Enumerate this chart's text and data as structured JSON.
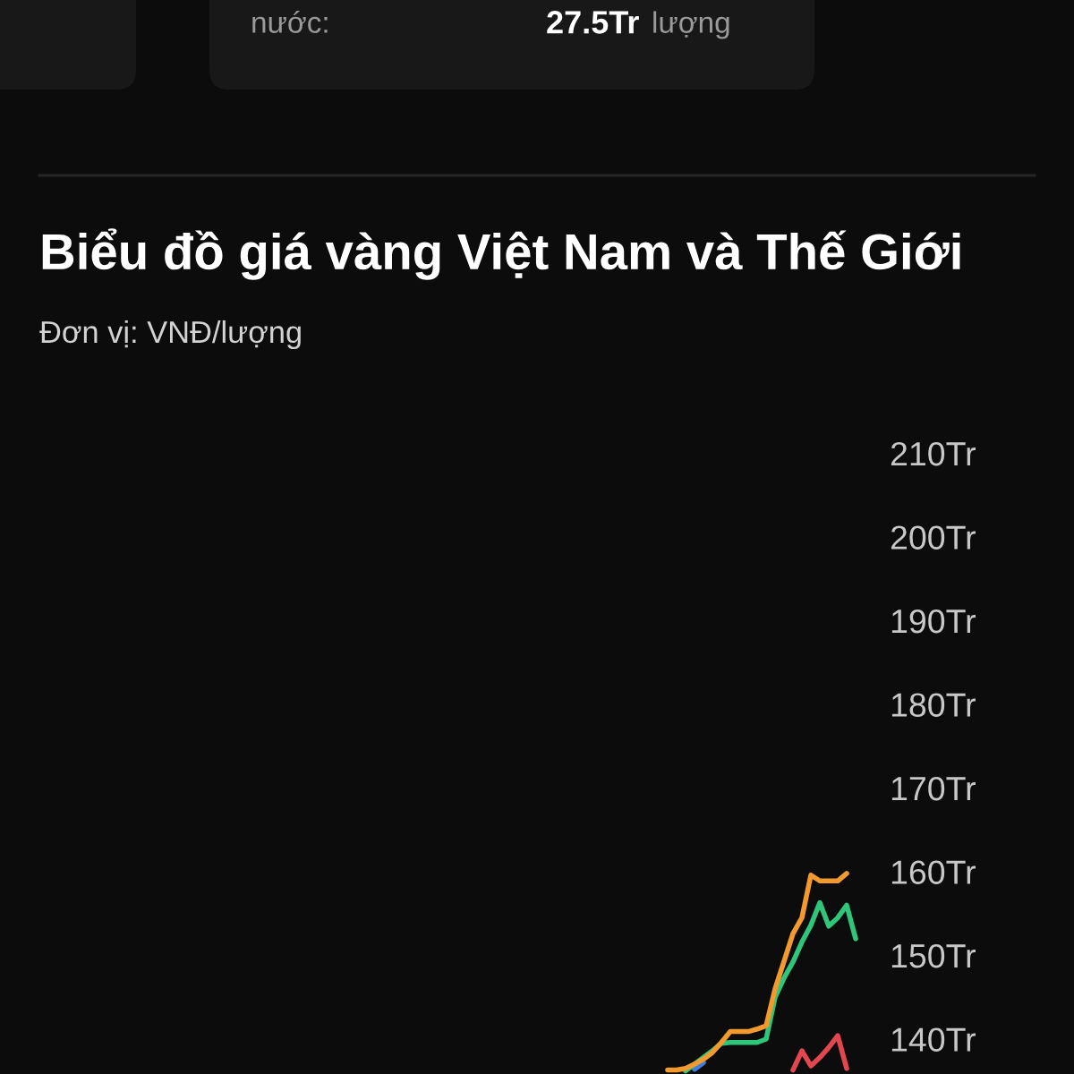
{
  "chart_data": {
    "type": "line",
    "title": "Biểu đồ giá vàng Việt Nam và Thế Giới",
    "subtitle": "Đơn vị: VNĐ/lượng",
    "annotations": [
      "nước:",
      "27.5Tr",
      "lượng"
    ],
    "categories": [
      null,
      null,
      null,
      null,
      null,
      null,
      null,
      null,
      null,
      null,
      null,
      null,
      null,
      null,
      null,
      null,
      null,
      null,
      null,
      null,
      null,
      null
    ],
    "series": [
      {
        "color": "#3d7fe0",
        "values": [
          null,
          null,
          null,
          136.4,
          137.2,
          null,
          null,
          null,
          null,
          null,
          null,
          null,
          null,
          null,
          null,
          null,
          null,
          null,
          null,
          null,
          null,
          null
        ]
      },
      {
        "color": "#e2474f",
        "values": [
          null,
          null,
          null,
          null,
          null,
          null,
          null,
          null,
          null,
          null,
          null,
          null,
          null,
          null,
          136.3,
          138.6,
          136.8,
          137.8,
          139.0,
          140.4,
          136.5,
          null
        ]
      },
      {
        "color": "#2fc57a",
        "values": [
          null,
          null,
          136.2,
          137.0,
          137.8,
          138.6,
          139.5,
          139.6,
          139.6,
          139.6,
          139.6,
          140.0,
          145.0,
          147.3,
          149.2,
          151.6,
          153.6,
          156.3,
          153.5,
          154.5,
          156.0,
          152.0
        ]
      },
      {
        "color": "#f39a2e",
        "values": [
          136.3,
          136.3,
          136.5,
          137.0,
          137.6,
          138.4,
          139.6,
          140.9,
          140.9,
          140.9,
          141.2,
          141.6,
          146.0,
          149.3,
          152.6,
          154.5,
          159.6,
          158.9,
          158.9,
          158.9,
          159.8,
          null
        ]
      }
    ],
    "ylim": [
      136,
      210
    ],
    "yticks": [
      {
        "value": 140,
        "label": "140Tr"
      },
      {
        "value": 150,
        "label": "150Tr"
      },
      {
        "value": 160,
        "label": "160Tr"
      },
      {
        "value": 170,
        "label": "170Tr"
      },
      {
        "value": 180,
        "label": "180Tr"
      },
      {
        "value": 190,
        "label": "190Tr"
      },
      {
        "value": 200,
        "label": "200Tr"
      },
      {
        "value": 210,
        "label": "210Tr"
      }
    ],
    "tick_labels": "y"
  }
}
